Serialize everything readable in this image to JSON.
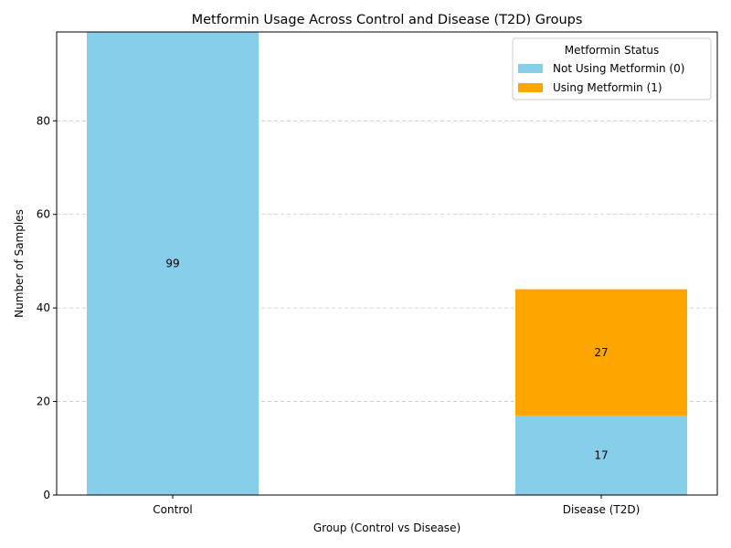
{
  "chart_data": {
    "type": "bar",
    "stacked": true,
    "title": "Metformin Usage Across Control and Disease (T2D) Groups",
    "xlabel": "Group (Control vs Disease)",
    "ylabel": "Number of Samples",
    "categories": [
      "Control",
      "Disease (T2D)"
    ],
    "series": [
      {
        "name": "Not Using Metformin (0)",
        "values": [
          99,
          17
        ],
        "color": "#87CEEB"
      },
      {
        "name": "Using Metformin (1)",
        "values": [
          0,
          27
        ],
        "color": "#FFA500"
      }
    ],
    "data_labels": [
      {
        "category": "Control",
        "series": "Not Using Metformin (0)",
        "text": "99"
      },
      {
        "category": "Disease (T2D)",
        "series": "Not Using Metformin (0)",
        "text": "17"
      },
      {
        "category": "Disease (T2D)",
        "series": "Using Metformin (1)",
        "text": "27"
      }
    ],
    "ylim": [
      0,
      99
    ],
    "yticks": [
      0,
      20,
      40,
      60,
      80
    ],
    "grid": "y-dashed",
    "legend": {
      "title": "Metformin Status",
      "placement": "top-right"
    }
  }
}
